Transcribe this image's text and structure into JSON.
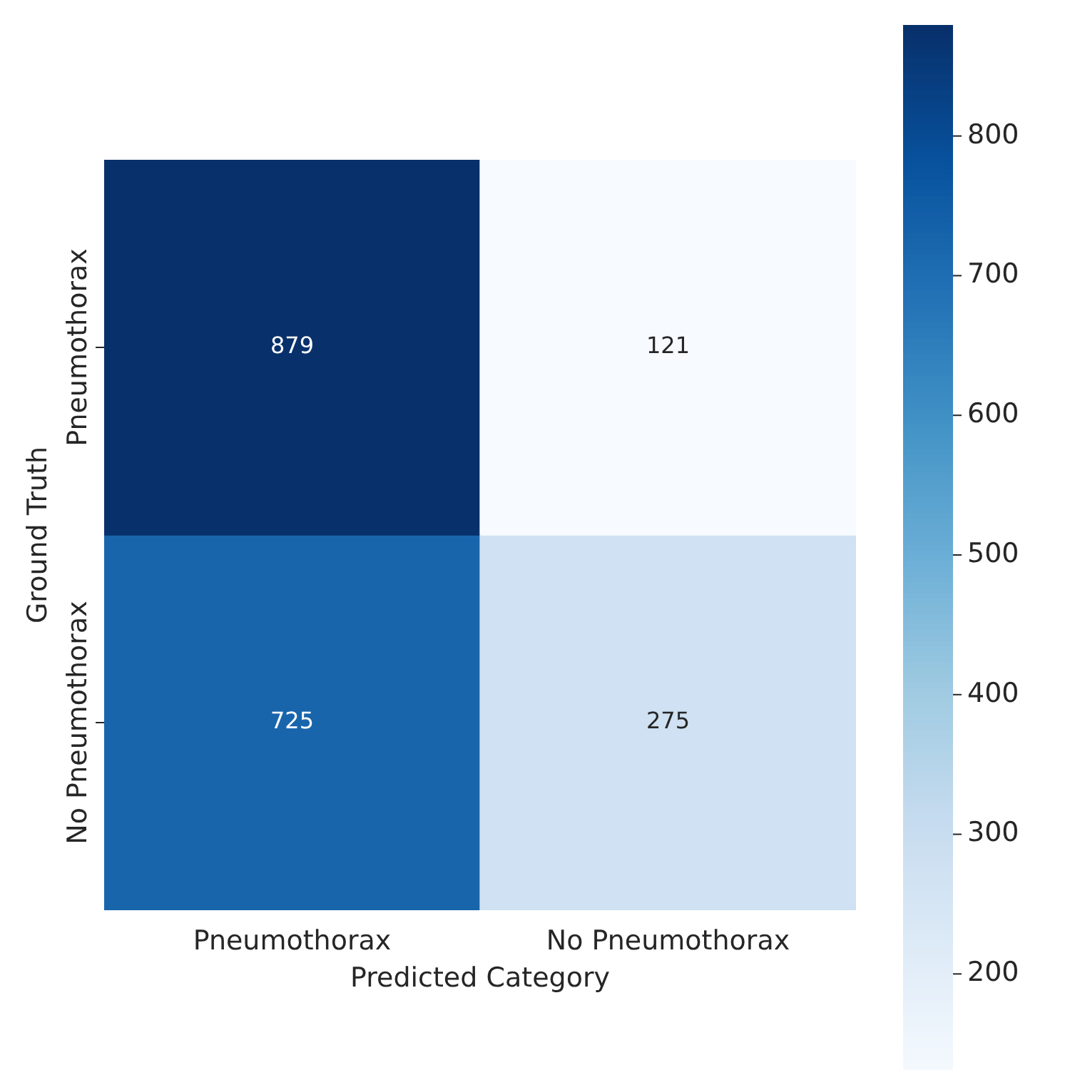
{
  "chart_data": {
    "type": "heatmap",
    "xlabel": "Predicted Category",
    "ylabel": "Ground Truth",
    "categories": [
      "Pneumothorax",
      "No Pneumothorax"
    ],
    "y_categories": [
      "Pneumothorax",
      "No Pneumothorax"
    ],
    "cells": [
      [
        879,
        121
      ],
      [
        725,
        275
      ]
    ],
    "data_labels": true,
    "clim": [
      121,
      879
    ],
    "cticks": [
      200,
      300,
      400,
      500,
      600,
      700,
      800
    ]
  }
}
